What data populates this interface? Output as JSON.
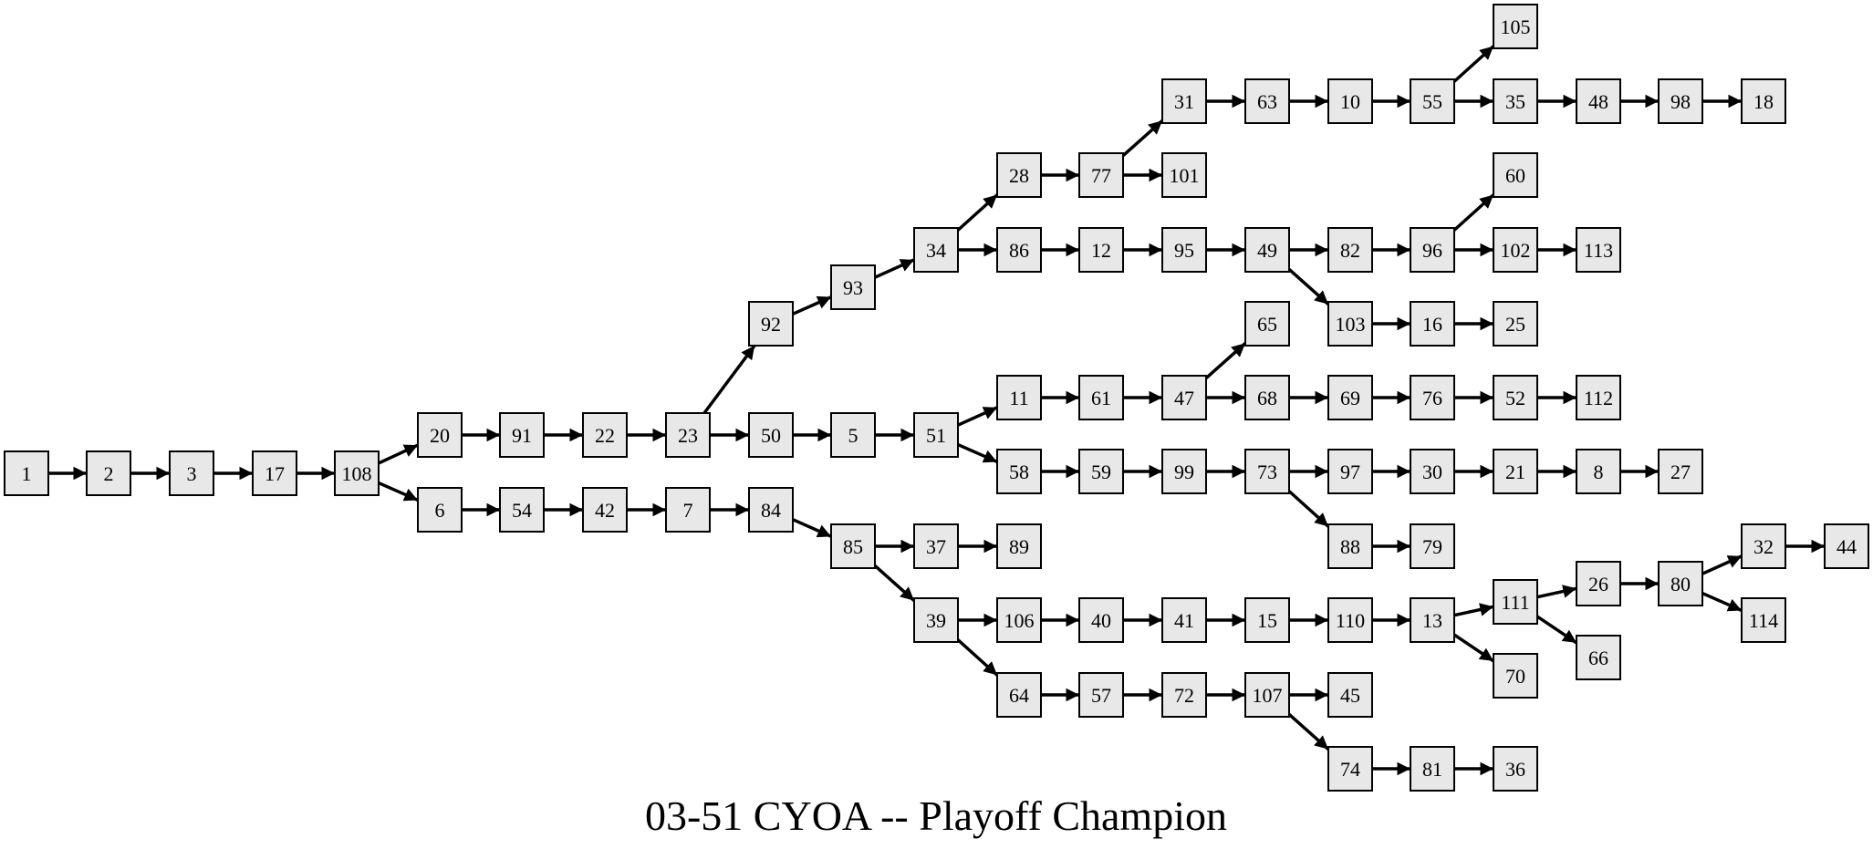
{
  "title": "03-51 CYOA -- Playoff Champion",
  "colors": {
    "node_fill": "#e8e8e8",
    "node_stroke": "#000000",
    "edge": "#000000",
    "background": "#ffffff"
  },
  "nodes": [
    "1",
    "2",
    "3",
    "17",
    "108",
    "20",
    "91",
    "22",
    "23",
    "92",
    "93",
    "34",
    "28",
    "77",
    "31",
    "63",
    "10",
    "55",
    "105",
    "35",
    "48",
    "98",
    "18",
    "101",
    "86",
    "12",
    "95",
    "49",
    "82",
    "96",
    "60",
    "102",
    "113",
    "103",
    "16",
    "25",
    "50",
    "5",
    "51",
    "11",
    "61",
    "47",
    "65",
    "68",
    "69",
    "76",
    "52",
    "112",
    "58",
    "59",
    "99",
    "73",
    "97",
    "30",
    "21",
    "8",
    "27",
    "88",
    "79",
    "6",
    "54",
    "42",
    "7",
    "84",
    "85",
    "37",
    "89",
    "39",
    "106",
    "40",
    "41",
    "15",
    "110",
    "13",
    "111",
    "26",
    "80",
    "32",
    "44",
    "114",
    "66",
    "70",
    "64",
    "57",
    "72",
    "107",
    "45",
    "74",
    "81",
    "36"
  ],
  "edges": [
    [
      "1",
      "2"
    ],
    [
      "2",
      "3"
    ],
    [
      "3",
      "17"
    ],
    [
      "17",
      "108"
    ],
    [
      "108",
      "20"
    ],
    [
      "108",
      "6"
    ],
    [
      "20",
      "91"
    ],
    [
      "91",
      "22"
    ],
    [
      "22",
      "23"
    ],
    [
      "23",
      "92"
    ],
    [
      "23",
      "50"
    ],
    [
      "92",
      "93"
    ],
    [
      "93",
      "34"
    ],
    [
      "34",
      "28"
    ],
    [
      "34",
      "86"
    ],
    [
      "28",
      "77"
    ],
    [
      "77",
      "31"
    ],
    [
      "77",
      "101"
    ],
    [
      "31",
      "63"
    ],
    [
      "63",
      "10"
    ],
    [
      "10",
      "55"
    ],
    [
      "55",
      "105"
    ],
    [
      "55",
      "35"
    ],
    [
      "35",
      "48"
    ],
    [
      "48",
      "98"
    ],
    [
      "98",
      "18"
    ],
    [
      "86",
      "12"
    ],
    [
      "12",
      "95"
    ],
    [
      "95",
      "49"
    ],
    [
      "49",
      "82"
    ],
    [
      "49",
      "103"
    ],
    [
      "82",
      "96"
    ],
    [
      "96",
      "60"
    ],
    [
      "96",
      "102"
    ],
    [
      "102",
      "113"
    ],
    [
      "103",
      "16"
    ],
    [
      "16",
      "25"
    ],
    [
      "50",
      "5"
    ],
    [
      "5",
      "51"
    ],
    [
      "51",
      "11"
    ],
    [
      "51",
      "58"
    ],
    [
      "11",
      "61"
    ],
    [
      "61",
      "47"
    ],
    [
      "47",
      "65"
    ],
    [
      "47",
      "68"
    ],
    [
      "68",
      "69"
    ],
    [
      "69",
      "76"
    ],
    [
      "76",
      "52"
    ],
    [
      "52",
      "112"
    ],
    [
      "58",
      "59"
    ],
    [
      "59",
      "99"
    ],
    [
      "99",
      "73"
    ],
    [
      "73",
      "97"
    ],
    [
      "73",
      "88"
    ],
    [
      "97",
      "30"
    ],
    [
      "30",
      "21"
    ],
    [
      "21",
      "8"
    ],
    [
      "8",
      "27"
    ],
    [
      "88",
      "79"
    ],
    [
      "6",
      "54"
    ],
    [
      "54",
      "42"
    ],
    [
      "42",
      "7"
    ],
    [
      "7",
      "84"
    ],
    [
      "84",
      "85"
    ],
    [
      "85",
      "37"
    ],
    [
      "85",
      "39"
    ],
    [
      "37",
      "89"
    ],
    [
      "39",
      "106"
    ],
    [
      "39",
      "64"
    ],
    [
      "106",
      "40"
    ],
    [
      "40",
      "41"
    ],
    [
      "41",
      "15"
    ],
    [
      "15",
      "110"
    ],
    [
      "110",
      "13"
    ],
    [
      "13",
      "111"
    ],
    [
      "13",
      "70"
    ],
    [
      "111",
      "26"
    ],
    [
      "111",
      "66"
    ],
    [
      "26",
      "80"
    ],
    [
      "80",
      "32"
    ],
    [
      "80",
      "114"
    ],
    [
      "32",
      "44"
    ],
    [
      "64",
      "57"
    ],
    [
      "57",
      "72"
    ],
    [
      "72",
      "107"
    ],
    [
      "107",
      "45"
    ],
    [
      "107",
      "74"
    ],
    [
      "74",
      "81"
    ],
    [
      "81",
      "36"
    ]
  ]
}
